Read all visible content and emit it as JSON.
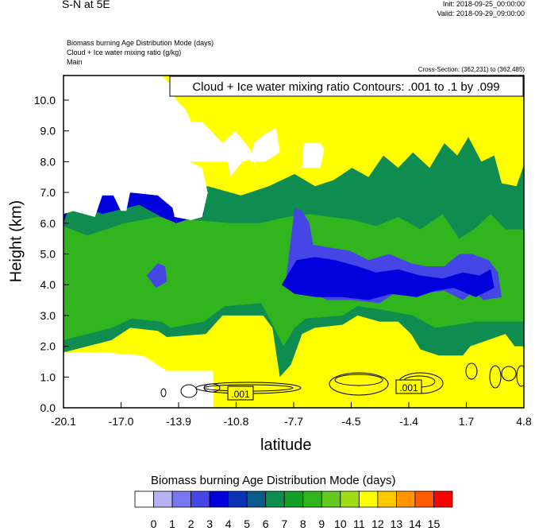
{
  "header": {
    "title": "S-N at 5E",
    "init": "Init: 2018-09-25_00:00:00",
    "valid": "Valid: 2018-09-29_09:00:00",
    "line1": "Biomass burning Age Distribution Mode   (days)",
    "line2": "Cloud + Ice water mixing ratio   (g/kg)",
    "line3": "Main",
    "cross_section": "Cross-Section: (362,231) to (362,485)"
  },
  "chart_data": {
    "type": "heatmap",
    "title": "Cloud + Ice water mixing ratio Contours: .001 to .1 by .099",
    "xlabel": "latitude",
    "ylabel": "Height (km)",
    "x_ticks": [
      "-20.1",
      "-17.0",
      "-13.9",
      "-10.8",
      "-7.7",
      "-4.5",
      "-1.4",
      "1.7",
      "4.8"
    ],
    "y_ticks": [
      "0.0",
      "1.0",
      "2.0",
      "3.0",
      "4.0",
      "5.0",
      "6.0",
      "7.0",
      "8.0",
      "9.0",
      "10.0"
    ],
    "xlim": [
      -20.1,
      4.8
    ],
    "ylim": [
      0,
      10.8
    ],
    "contour_labels": [
      ".001",
      ".001"
    ],
    "colorbar": {
      "title": "Biomass burning Age Distribution Mode  (days)",
      "labels": [
        "0",
        "1",
        "2",
        "3",
        "4",
        "5",
        "6",
        "7",
        "8",
        "9",
        "10",
        "11",
        "12",
        "13",
        "14",
        "15"
      ],
      "colors": [
        "#ffffff",
        "#b4b4f5",
        "#7878f0",
        "#4646e6",
        "#0000dc",
        "#0a32b4",
        "#0a5a8c",
        "#0f8c50",
        "#14a028",
        "#32b41e",
        "#64c81e",
        "#a0dc14",
        "#ffff00",
        "#ffc800",
        "#ff9600",
        "#ff5a00",
        "#ff0000"
      ]
    },
    "regions": [
      {
        "level": 12,
        "poly": [
          [
            -20.1,
            0
          ],
          [
            4.8,
            0
          ],
          [
            4.8,
            10.8
          ],
          [
            -20.1,
            10.8
          ]
        ]
      },
      {
        "level": 7,
        "poly": [
          [
            -20.1,
            1.8
          ],
          [
            -17.5,
            2.2
          ],
          [
            -16.5,
            2.6
          ],
          [
            -15,
            2.5
          ],
          [
            -14.5,
            2.3
          ],
          [
            -12.4,
            2.4
          ],
          [
            -11.5,
            3.0
          ],
          [
            -9.3,
            3.0
          ],
          [
            -8.8,
            2.6
          ],
          [
            -8.4,
            1.0
          ],
          [
            -7.8,
            1.4
          ],
          [
            -7.2,
            2.4
          ],
          [
            -6.5,
            2.6
          ],
          [
            -5.0,
            2.7
          ],
          [
            -4.2,
            3.0
          ],
          [
            -3.0,
            2.8
          ],
          [
            -2.0,
            2.8
          ],
          [
            -1.3,
            2.4
          ],
          [
            -0.8,
            1.9
          ],
          [
            0.2,
            1.7
          ],
          [
            1.5,
            1.7
          ],
          [
            1.9,
            2.0
          ],
          [
            3.8,
            2.4
          ],
          [
            4.3,
            2.0
          ],
          [
            4.8,
            2.0
          ],
          [
            4.8,
            7.9
          ],
          [
            4.4,
            7.2
          ],
          [
            3.6,
            7.3
          ],
          [
            3.2,
            8.2
          ],
          [
            2.5,
            8.0
          ],
          [
            1.8,
            8.8
          ],
          [
            1.2,
            8.2
          ],
          [
            0.5,
            8.6
          ],
          [
            -0.3,
            7.8
          ],
          [
            -1.2,
            8.3
          ],
          [
            -2.0,
            7.8
          ],
          [
            -2.8,
            8.2
          ],
          [
            -3.6,
            7.5
          ],
          [
            -4.5,
            7.8
          ],
          [
            -5.5,
            7.4
          ],
          [
            -6.5,
            7.2
          ],
          [
            -7.6,
            7.6
          ],
          [
            -9.0,
            7.2
          ],
          [
            -10.5,
            6.9
          ],
          [
            -12.3,
            7.2
          ],
          [
            -13.5,
            7.0
          ],
          [
            -15.4,
            6.8
          ],
          [
            -17.8,
            6.7
          ],
          [
            -20.1,
            6.3
          ]
        ]
      },
      {
        "level": 9,
        "poly": [
          [
            -20.1,
            2.2
          ],
          [
            -17.5,
            2.6
          ],
          [
            -16.4,
            2.9
          ],
          [
            -14.8,
            2.8
          ],
          [
            -14.3,
            2.6
          ],
          [
            -12.5,
            2.8
          ],
          [
            -11.4,
            3.3
          ],
          [
            -9.4,
            3.4
          ],
          [
            -8.7,
            2.6
          ],
          [
            -8.2,
            2.0
          ],
          [
            -7.6,
            2.6
          ],
          [
            -7.0,
            2.9
          ],
          [
            -5.0,
            3.0
          ],
          [
            -4.2,
            3.3
          ],
          [
            -3.0,
            3.2
          ],
          [
            -1.2,
            3.0
          ],
          [
            0.0,
            2.6
          ],
          [
            1.2,
            2.7
          ],
          [
            2.2,
            2.8
          ],
          [
            3.6,
            2.8
          ],
          [
            4.8,
            2.8
          ],
          [
            4.8,
            5.8
          ],
          [
            3.8,
            5.8
          ],
          [
            3.0,
            6.3
          ],
          [
            2.1,
            5.8
          ],
          [
            1.3,
            5.5
          ],
          [
            0.4,
            6.3
          ],
          [
            -0.8,
            5.8
          ],
          [
            -2.0,
            6.2
          ],
          [
            -3.2,
            5.9
          ],
          [
            -4.4,
            6.1
          ],
          [
            -5.6,
            6.2
          ],
          [
            -6.8,
            6.3
          ],
          [
            -8.0,
            6.2
          ],
          [
            -9.5,
            6.0
          ],
          [
            -11.0,
            6.0
          ],
          [
            -13.0,
            6.1
          ],
          [
            -15.0,
            6.2
          ],
          [
            -16.8,
            6.0
          ],
          [
            -18.8,
            5.6
          ],
          [
            -20.1,
            5.9
          ]
        ]
      },
      {
        "level": 3,
        "poly": [
          [
            -8.1,
            4.0
          ],
          [
            -7.6,
            6.5
          ],
          [
            -7.2,
            6.4
          ],
          [
            -6.8,
            6.0
          ],
          [
            -6.6,
            5.3
          ],
          [
            -5.6,
            5.2
          ],
          [
            -4.6,
            5.1
          ],
          [
            -3.6,
            4.8
          ],
          [
            -2.5,
            5.0
          ],
          [
            -1.3,
            4.7
          ],
          [
            -0.5,
            4.6
          ],
          [
            0.5,
            4.6
          ],
          [
            1.3,
            5.0
          ],
          [
            2.0,
            5.0
          ],
          [
            2.9,
            4.8
          ],
          [
            3.4,
            4.4
          ],
          [
            3.6,
            3.6
          ],
          [
            2.6,
            3.5
          ],
          [
            2.1,
            3.8
          ],
          [
            1.5,
            3.5
          ],
          [
            0.5,
            3.8
          ],
          [
            -1.0,
            3.7
          ],
          [
            -2.0,
            3.8
          ],
          [
            -3.0,
            3.4
          ],
          [
            -4.5,
            3.5
          ],
          [
            -5.8,
            3.5
          ],
          [
            -7.0,
            3.8
          ]
        ]
      },
      {
        "level": 4,
        "poly": [
          [
            -8.3,
            4.0
          ],
          [
            -7.5,
            4.8
          ],
          [
            -6.5,
            4.9
          ],
          [
            -5.4,
            4.8
          ],
          [
            -4.2,
            4.6
          ],
          [
            -3.2,
            4.4
          ],
          [
            -2.0,
            4.5
          ],
          [
            -0.8,
            4.3
          ],
          [
            0.4,
            4.2
          ],
          [
            1.5,
            4.4
          ],
          [
            2.4,
            4.3
          ],
          [
            3.0,
            4.5
          ],
          [
            3.2,
            3.9
          ],
          [
            2.2,
            3.6
          ],
          [
            1.0,
            3.9
          ],
          [
            0.0,
            3.8
          ],
          [
            -1.0,
            3.6
          ],
          [
            -2.4,
            3.7
          ],
          [
            -3.6,
            3.5
          ],
          [
            -5.0,
            3.6
          ],
          [
            -6.4,
            3.6
          ],
          [
            -7.6,
            3.7
          ]
        ]
      },
      {
        "level": 3,
        "poly": [
          [
            -15.6,
            4.3
          ],
          [
            -15.0,
            4.7
          ],
          [
            -14.6,
            4.6
          ],
          [
            -14.5,
            4.1
          ],
          [
            -15.1,
            3.9
          ]
        ]
      },
      {
        "level": 4,
        "poly": [
          [
            -20.1,
            6.0
          ],
          [
            -19.7,
            6.7
          ],
          [
            -18.0,
            6.3
          ],
          [
            -16.0,
            6.6
          ],
          [
            -14.8,
            6.2
          ],
          [
            -14.0,
            6.0
          ],
          [
            -12.5,
            6.3
          ],
          [
            -12.8,
            6.9
          ],
          [
            -16.0,
            7.0
          ],
          [
            -19.0,
            7.0
          ],
          [
            -20.1,
            6.8
          ]
        ]
      },
      {
        "level": 0,
        "poly": [
          [
            -20.1,
            6.3
          ],
          [
            -19.6,
            6.4
          ],
          [
            -18.4,
            6.2
          ],
          [
            -18.0,
            6.9
          ],
          [
            -17.4,
            6.9
          ],
          [
            -17.0,
            6.4
          ],
          [
            -16.7,
            6.4
          ],
          [
            -16.5,
            7.0
          ],
          [
            -15.0,
            6.9
          ],
          [
            -14.2,
            6.5
          ],
          [
            -14.1,
            6.2
          ],
          [
            -13.2,
            6.1
          ],
          [
            -12.6,
            6.2
          ],
          [
            -12.3,
            7.0
          ],
          [
            -12.6,
            7.8
          ],
          [
            -13.3,
            8.0
          ],
          [
            -11.2,
            8.0
          ],
          [
            -11.1,
            7.5
          ],
          [
            -10.4,
            8.0
          ],
          [
            -9.8,
            8.1
          ],
          [
            -9.6,
            7.6
          ],
          [
            -10.0,
            8.4
          ],
          [
            -10.8,
            9.0
          ],
          [
            -11.5,
            8.6
          ],
          [
            -12.6,
            9.3
          ],
          [
            -13.2,
            9.3
          ],
          [
            -13.5,
            9.7
          ],
          [
            -14.0,
            10.0
          ],
          [
            -14.3,
            10.5
          ],
          [
            -14.8,
            10.8
          ],
          [
            -20.1,
            10.8
          ]
        ]
      },
      {
        "level": 0,
        "poly": [
          [
            -10.0,
            8.0
          ],
          [
            -9.2,
            8.0
          ],
          [
            -8.4,
            8.3
          ],
          [
            -8.6,
            9.1
          ],
          [
            -9.2,
            8.9
          ],
          [
            -9.8,
            8.6
          ]
        ]
      },
      {
        "level": 0,
        "poly": [
          [
            -7.2,
            7.8
          ],
          [
            -6.2,
            7.8
          ],
          [
            -6.0,
            8.4
          ],
          [
            -6.2,
            8.6
          ],
          [
            -7.1,
            8.6
          ]
        ]
      },
      {
        "level": 0,
        "poly": [
          [
            -20.1,
            0.0
          ],
          [
            -12.0,
            0.0
          ],
          [
            -12.0,
            1.2
          ],
          [
            -14.5,
            1.2
          ],
          [
            -15.8,
            1.7
          ],
          [
            -18.0,
            1.8
          ],
          [
            -20.1,
            1.8
          ]
        ]
      }
    ]
  }
}
